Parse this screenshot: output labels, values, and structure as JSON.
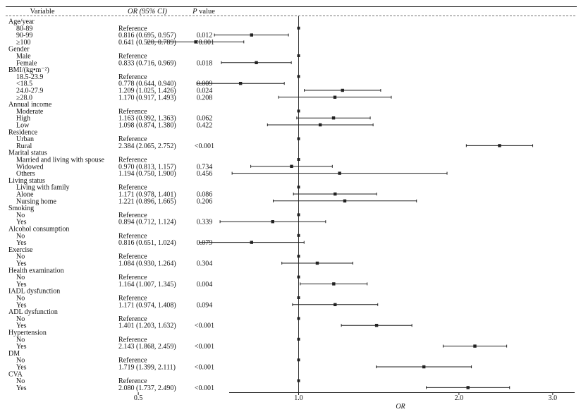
{
  "chart_data": {
    "type": "forest",
    "header": {
      "variable": "Variable",
      "or_ci": "OR (95% CI)",
      "p_value_letter": "P",
      "p_value_word": " value"
    },
    "xlabel": "OR",
    "xticks": [
      "0.5",
      "1.0",
      "2.0",
      "3.0"
    ],
    "reference_line": 1.0,
    "rows": [
      {
        "label": "Age/year",
        "indent": 0
      },
      {
        "label": "80-89",
        "indent": 1,
        "text": "Reference",
        "ref": true
      },
      {
        "label": "90-99",
        "indent": 1,
        "text": "0.816 (0.695, 0.957)",
        "or": 0.816,
        "lo": 0.695,
        "hi": 0.957,
        "p": "0.012"
      },
      {
        "label": "≥100",
        "indent": 1,
        "text": "0.641 (0.520, 0.789)",
        "or": 0.641,
        "lo": 0.52,
        "hi": 0.789,
        "p": "<0.001"
      },
      {
        "label": "Gender",
        "indent": 0
      },
      {
        "label": "Male",
        "indent": 1,
        "text": "Reference",
        "ref": true
      },
      {
        "label": "Female",
        "indent": 1,
        "text": "0.833 (0.716, 0.969)",
        "or": 0.833,
        "lo": 0.716,
        "hi": 0.969,
        "p": "0.018"
      },
      {
        "label": "BMI/(kg•m⁻²)",
        "indent": 0
      },
      {
        "label": "18.5-23.9",
        "indent": 1,
        "text": "Reference",
        "ref": true
      },
      {
        "label": "<18.5",
        "indent": 1,
        "text": "0.778 (0.644, 0.940)",
        "or": 0.778,
        "lo": 0.644,
        "hi": 0.94,
        "p": "0.009"
      },
      {
        "label": "24.0-27.9",
        "indent": 1,
        "text": "1.209 (1.025, 1.426)",
        "or": 1.209,
        "lo": 1.025,
        "hi": 1.426,
        "p": "0.024"
      },
      {
        "label": "≥28.0",
        "indent": 1,
        "text": "1.170 (0.917, 1.493)",
        "or": 1.17,
        "lo": 0.917,
        "hi": 1.493,
        "p": "0.208"
      },
      {
        "label": "Annual income",
        "indent": 0
      },
      {
        "label": "Moderate",
        "indent": 1,
        "text": "Reference",
        "ref": true
      },
      {
        "label": "High",
        "indent": 1,
        "text": "1.163 (0.992, 1.363)",
        "or": 1.163,
        "lo": 0.992,
        "hi": 1.363,
        "p": "0.062"
      },
      {
        "label": "Low",
        "indent": 1,
        "text": "1.098 (0.874, 1.380)",
        "or": 1.098,
        "lo": 0.874,
        "hi": 1.38,
        "p": "0.422"
      },
      {
        "label": "Residence",
        "indent": 0
      },
      {
        "label": "Urban",
        "indent": 1,
        "text": "Reference",
        "ref": true
      },
      {
        "label": "Rural",
        "indent": 1,
        "text": "2.384 (2.065, 2.752)",
        "or": 2.384,
        "lo": 2.065,
        "hi": 2.752,
        "p": "<0.001"
      },
      {
        "label": "Marital status",
        "indent": 0
      },
      {
        "label": "Married and living with spouse",
        "indent": 1,
        "text": "Reference",
        "ref": true
      },
      {
        "label": "Widowed",
        "indent": 1,
        "text": "0.970 (0.813, 1.157)",
        "or": 0.97,
        "lo": 0.813,
        "hi": 1.157,
        "p": "0.734"
      },
      {
        "label": "Others",
        "indent": 1,
        "text": "1.194 (0.750, 1.900)",
        "or": 1.194,
        "lo": 0.75,
        "hi": 1.9,
        "p": "0.456"
      },
      {
        "label": "Living status",
        "indent": 0
      },
      {
        "label": "Living with family",
        "indent": 1,
        "text": "Reference",
        "ref": true
      },
      {
        "label": "Alone",
        "indent": 1,
        "text": "1.171 (0.978, 1.401)",
        "or": 1.171,
        "lo": 0.978,
        "hi": 1.401,
        "p": "0.086"
      },
      {
        "label": "Nursing home",
        "indent": 1,
        "text": "1.221 (0.896, 1.665)",
        "or": 1.221,
        "lo": 0.896,
        "hi": 1.665,
        "p": "0.206"
      },
      {
        "label": "Smoking",
        "indent": 0
      },
      {
        "label": "No",
        "indent": 1,
        "text": "Reference",
        "ref": true
      },
      {
        "label": "Yes",
        "indent": 1,
        "text": "0.894 (0.712, 1.124)",
        "or": 0.894,
        "lo": 0.712,
        "hi": 1.124,
        "p": "0.339"
      },
      {
        "label": "Alcohol consumption",
        "indent": 0
      },
      {
        "label": "No",
        "indent": 1,
        "text": "Reference",
        "ref": true
      },
      {
        "label": "Yes",
        "indent": 1,
        "text": "0.816 (0.651, 1.024)",
        "or": 0.816,
        "lo": 0.651,
        "hi": 1.024,
        "p": "0.079"
      },
      {
        "label": "Exercise",
        "indent": 0
      },
      {
        "label": "No",
        "indent": 1,
        "text": "Reference",
        "ref": true
      },
      {
        "label": "Yes",
        "indent": 1,
        "text": "1.084 (0.930, 1.264)",
        "or": 1.084,
        "lo": 0.93,
        "hi": 1.264,
        "p": "0.304"
      },
      {
        "label": "Health examination",
        "indent": 0
      },
      {
        "label": "No",
        "indent": 1,
        "text": "Reference",
        "ref": true
      },
      {
        "label": "Yes",
        "indent": 1,
        "text": "1.164 (1.007, 1.345)",
        "or": 1.164,
        "lo": 1.007,
        "hi": 1.345,
        "p": "0.004"
      },
      {
        "label": "IADL dysfunction",
        "indent": 0
      },
      {
        "label": "No",
        "indent": 1,
        "text": "Reference",
        "ref": true
      },
      {
        "label": "Yes",
        "indent": 1,
        "text": "1.171 (0.974, 1.408)",
        "or": 1.171,
        "lo": 0.974,
        "hi": 1.408,
        "p": "0.094"
      },
      {
        "label": "ADL dysfunction",
        "indent": 0
      },
      {
        "label": "No",
        "indent": 1,
        "text": "Reference",
        "ref": true
      },
      {
        "label": "Yes",
        "indent": 1,
        "text": "1.401 (1.203, 1.632)",
        "or": 1.401,
        "lo": 1.203,
        "hi": 1.632,
        "p": "<0.001"
      },
      {
        "label": "Hypertension",
        "indent": 0
      },
      {
        "label": "No",
        "indent": 1,
        "text": "Reference",
        "ref": true
      },
      {
        "label": "Yes",
        "indent": 1,
        "text": "2.143 (1.868, 2.459)",
        "or": 2.143,
        "lo": 1.868,
        "hi": 2.459,
        "p": "<0.001"
      },
      {
        "label": "DM",
        "indent": 0
      },
      {
        "label": "No",
        "indent": 1,
        "text": "Reference",
        "ref": true
      },
      {
        "label": "Yes",
        "indent": 1,
        "text": "1.719 (1.399, 2.111)",
        "or": 1.719,
        "lo": 1.399,
        "hi": 2.111,
        "p": "<0.001"
      },
      {
        "label": "CVA",
        "indent": 0
      },
      {
        "label": "No",
        "indent": 1,
        "text": "Reference",
        "ref": true
      },
      {
        "label": "Yes",
        "indent": 1,
        "text": "2.080 (1.737, 2.490)",
        "or": 2.08,
        "lo": 1.737,
        "hi": 2.49,
        "p": "<0.001"
      }
    ]
  }
}
